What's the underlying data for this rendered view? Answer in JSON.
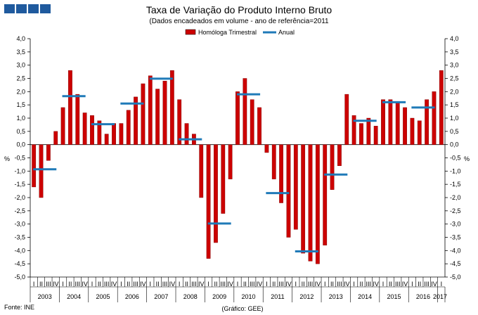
{
  "header": {
    "logo": "ine-logo"
  },
  "chart_data": {
    "type": "bar",
    "title": "Taxa de Variação do Produto Interno Bruto",
    "subtitle": "(Dados encadeados em volume  - ano de referência=2011",
    "ylabel_left": "%",
    "ylabel_right": "%",
    "ylim": [
      -5.0,
      4.0
    ],
    "yticks": [
      "4,0",
      "3,5",
      "3,0",
      "2,5",
      "2,0",
      "1,5",
      "1,0",
      "0,5",
      "0,0",
      "-0,5",
      "-1,0",
      "-1,5",
      "-2,0",
      "-2,5",
      "-3,0",
      "-3,5",
      "-4,0",
      "-4,5",
      "-5,0"
    ],
    "quarter_labels": [
      "I",
      "II",
      "III",
      "IV"
    ],
    "years": [
      "2003",
      "2004",
      "2005",
      "2006",
      "2007",
      "2008",
      "2009",
      "2010",
      "2011",
      "2012",
      "2013",
      "2014",
      "2015",
      "2016",
      "2017"
    ],
    "series": [
      {
        "name": "Homóloga Trimestral",
        "type": "bar",
        "color": "#cc0000",
        "values": [
          -1.6,
          -2.0,
          -0.6,
          0.5,
          1.4,
          2.8,
          1.9,
          1.2,
          1.1,
          0.9,
          0.4,
          0.8,
          0.8,
          1.3,
          1.8,
          2.3,
          2.6,
          2.1,
          2.4,
          2.8,
          1.7,
          0.8,
          0.4,
          -2.0,
          -4.3,
          -3.7,
          -2.6,
          -1.3,
          2.0,
          2.5,
          1.7,
          1.4,
          -0.3,
          -1.3,
          -2.2,
          -3.5,
          -3.2,
          -4.1,
          -4.4,
          -4.5,
          -3.8,
          -1.7,
          -0.8,
          1.9,
          1.1,
          0.8,
          1.0,
          0.7,
          1.7,
          1.7,
          1.6,
          1.4,
          1.0,
          0.9,
          1.7,
          2.0,
          2.8
        ]
      },
      {
        "name": "Anual",
        "type": "line",
        "color": "#1f7ab8",
        "values": [
          -0.93,
          1.83,
          0.77,
          1.55,
          2.49,
          0.2,
          -2.98,
          1.9,
          -1.83,
          -4.03,
          -1.13,
          0.9,
          1.6,
          1.4
        ]
      }
    ],
    "legend": "top-center"
  },
  "footer": {
    "source": "Fonte: INE",
    "credit": "(Gráfico: GEE)"
  }
}
